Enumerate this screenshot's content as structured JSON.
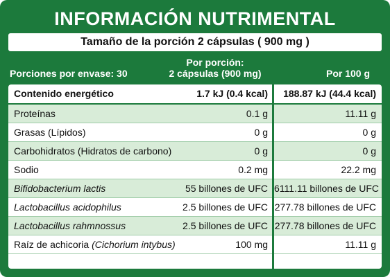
{
  "title": "INFORMACIÓN NUTRIMENTAL",
  "serving_size": "Tamaño de la porción 2 cápsulas ( 900 mg )",
  "headers": {
    "servings": "Porciones por envase: 30",
    "per_serving_line1": "Por porción:",
    "per_serving_line2": "2 cápsulas (900 mg)",
    "per_100g": "Por 100 g"
  },
  "rows": [
    {
      "name": "Contenido energético",
      "per_serving": "1.7 kJ (0.4 kcal)",
      "per_100g": "188.87 kJ (44.4 kcal)"
    },
    {
      "name": "Proteínas",
      "per_serving": "0.1 g",
      "per_100g": "11.11 g"
    },
    {
      "name": "Grasas (Lípidos)",
      "per_serving": "0 g",
      "per_100g": "0 g"
    },
    {
      "name": "Carbohidratos (Hidratos de carbono)",
      "per_serving": "0 g",
      "per_100g": "0 g"
    },
    {
      "name": "Sodio",
      "per_serving": "0.2 mg",
      "per_100g": "22.2 mg"
    },
    {
      "name": "Bifidobacterium lactis",
      "per_serving": "55 billones de UFC",
      "per_100g": "6111.11 billones de UFC"
    },
    {
      "name": "Lactobacillus acidophilus",
      "per_serving": "2.5 billones de UFC",
      "per_100g": "277.78 billones de UFC"
    },
    {
      "name": "Lactobacillus rahmnossus",
      "per_serving": "2.5 billones de UFC",
      "per_100g": "277.78 billones de UFC"
    },
    {
      "name_prefix": "Raíz de achicoria ",
      "name_italic": "(Cichorium intybus)",
      "per_serving": "100 mg",
      "per_100g": "11.11 g"
    }
  ],
  "colors": {
    "panel_green": "#1c7a3c",
    "row_shade": "#d8ecd8"
  }
}
